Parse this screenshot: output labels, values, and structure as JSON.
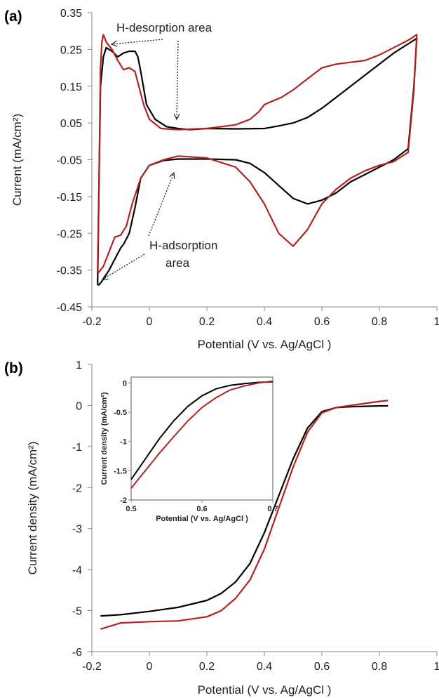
{
  "chart_data": [
    {
      "panel": "(a)",
      "type": "line",
      "xlabel": "Potential (V vs. Ag/AgCl )",
      "ylabel": "Current (mA/cm²)",
      "xlim": [
        -0.2,
        1
      ],
      "ylim": [
        -0.45,
        0.35
      ],
      "xticks": [
        -0.2,
        0,
        0.2,
        0.4,
        0.6,
        0.8,
        1
      ],
      "xtick_labels": [
        "-0.2",
        "0",
        "0.2",
        "0.4",
        "0.6",
        "0.8",
        "1"
      ],
      "yticks": [
        -0.45,
        -0.35,
        -0.25,
        -0.15,
        -0.05,
        0.05,
        0.15,
        0.25,
        0.35
      ],
      "ytick_labels": [
        "-0.45",
        "-0.35",
        "-0.25",
        "-0.15",
        "-0.05",
        "0.05",
        "0.15",
        "0.25",
        "0.35"
      ],
      "annotations": [
        {
          "text": "H-desorption area"
        },
        {
          "text": "H-adsorption"
        },
        {
          "text": "area"
        }
      ],
      "series": [
        {
          "color": "#000000",
          "x": [
            -0.18,
            -0.175,
            -0.17,
            -0.16,
            -0.15,
            -0.13,
            -0.11,
            -0.09,
            -0.07,
            -0.05,
            -0.04,
            -0.03,
            -0.01,
            0.02,
            0.06,
            0.1,
            0.14,
            0.2,
            0.3,
            0.4,
            0.45,
            0.5,
            0.55,
            0.6,
            0.65,
            0.7,
            0.75,
            0.8,
            0.85,
            0.9,
            0.93,
            0.93,
            0.92,
            0.9,
            0.85,
            0.8,
            0.75,
            0.7,
            0.65,
            0.6,
            0.55,
            0.5,
            0.45,
            0.4,
            0.35,
            0.3,
            0.2,
            0.1,
            0.05,
            0.0,
            -0.03,
            -0.05,
            -0.07,
            -0.09,
            -0.1,
            -0.12,
            -0.14,
            -0.16,
            -0.17,
            -0.175,
            -0.18
          ],
          "y": [
            -0.39,
            -0.1,
            0.15,
            0.23,
            0.255,
            0.245,
            0.23,
            0.24,
            0.245,
            0.245,
            0.23,
            0.19,
            0.1,
            0.06,
            0.04,
            0.035,
            0.032,
            0.035,
            0.034,
            0.035,
            0.042,
            0.05,
            0.065,
            0.09,
            0.12,
            0.15,
            0.18,
            0.21,
            0.24,
            0.265,
            0.28,
            0.28,
            0.15,
            -0.02,
            -0.05,
            -0.07,
            -0.09,
            -0.11,
            -0.14,
            -0.16,
            -0.17,
            -0.155,
            -0.12,
            -0.085,
            -0.06,
            -0.05,
            -0.048,
            -0.048,
            -0.052,
            -0.065,
            -0.1,
            -0.18,
            -0.25,
            -0.28,
            -0.29,
            -0.32,
            -0.35,
            -0.375,
            -0.385,
            -0.39,
            -0.39
          ]
        },
        {
          "color": "#b22222",
          "x": [
            -0.18,
            -0.175,
            -0.17,
            -0.165,
            -0.16,
            -0.15,
            -0.13,
            -0.11,
            -0.09,
            -0.07,
            -0.05,
            -0.04,
            -0.02,
            0.0,
            0.04,
            0.1,
            0.2,
            0.3,
            0.35,
            0.38,
            0.4,
            0.43,
            0.46,
            0.5,
            0.55,
            0.6,
            0.65,
            0.7,
            0.75,
            0.8,
            0.85,
            0.9,
            0.93,
            0.93,
            0.92,
            0.9,
            0.85,
            0.8,
            0.75,
            0.7,
            0.65,
            0.6,
            0.55,
            0.5,
            0.45,
            0.4,
            0.35,
            0.3,
            0.2,
            0.1,
            0.05,
            0.0,
            -0.03,
            -0.06,
            -0.08,
            -0.1,
            -0.12,
            -0.14,
            -0.16,
            -0.175,
            -0.18
          ],
          "y": [
            -0.355,
            -0.1,
            0.2,
            0.27,
            0.29,
            0.27,
            0.25,
            0.22,
            0.195,
            0.2,
            0.19,
            0.16,
            0.1,
            0.06,
            0.035,
            0.032,
            0.035,
            0.045,
            0.06,
            0.08,
            0.1,
            0.11,
            0.12,
            0.14,
            0.17,
            0.2,
            0.21,
            0.215,
            0.22,
            0.235,
            0.255,
            0.275,
            0.29,
            0.29,
            0.14,
            -0.03,
            -0.055,
            -0.065,
            -0.08,
            -0.1,
            -0.13,
            -0.17,
            -0.24,
            -0.285,
            -0.25,
            -0.17,
            -0.11,
            -0.07,
            -0.045,
            -0.04,
            -0.05,
            -0.065,
            -0.1,
            -0.17,
            -0.23,
            -0.255,
            -0.26,
            -0.3,
            -0.34,
            -0.355,
            -0.355
          ]
        }
      ]
    },
    {
      "panel": "(b)",
      "type": "line",
      "xlabel": "Potential (V vs. Ag/AgCl )",
      "ylabel": "Current density  (mA/cm²)",
      "xlim": [
        -0.2,
        1
      ],
      "ylim": [
        -6,
        1
      ],
      "xticks": [
        -0.2,
        0,
        0.2,
        0.4,
        0.6,
        0.8,
        1
      ],
      "xtick_labels": [
        "-0.2",
        "0",
        "0.2",
        "0.4",
        "0.6",
        "0.8",
        "1"
      ],
      "yticks": [
        -6,
        -5,
        -4,
        -3,
        -2,
        -1,
        0,
        1
      ],
      "ytick_labels": [
        "-6",
        "-5",
        "-4",
        "-3",
        "-2",
        "-1",
        "0",
        "1"
      ],
      "series": [
        {
          "color": "#000000",
          "x": [
            -0.17,
            -0.1,
            0.0,
            0.1,
            0.2,
            0.25,
            0.3,
            0.35,
            0.4,
            0.45,
            0.5,
            0.55,
            0.6,
            0.65,
            0.7,
            0.75,
            0.8,
            0.83
          ],
          "y": [
            -5.13,
            -5.1,
            -5.02,
            -4.92,
            -4.75,
            -4.58,
            -4.3,
            -3.85,
            -3.1,
            -2.2,
            -1.3,
            -0.55,
            -0.15,
            -0.05,
            -0.03,
            -0.02,
            -0.01,
            -0.01
          ]
        },
        {
          "color": "#b22222",
          "x": [
            -0.17,
            -0.1,
            0.0,
            0.1,
            0.2,
            0.25,
            0.3,
            0.35,
            0.4,
            0.45,
            0.5,
            0.55,
            0.6,
            0.65,
            0.7,
            0.75,
            0.8,
            0.83
          ],
          "y": [
            -5.45,
            -5.3,
            -5.27,
            -5.25,
            -5.15,
            -5.0,
            -4.7,
            -4.25,
            -3.5,
            -2.5,
            -1.5,
            -0.65,
            -0.18,
            -0.05,
            0.0,
            0.05,
            0.1,
            0.12
          ]
        }
      ],
      "inset": {
        "xlabel": "Potential (V vs. Ag/AgCl )",
        "ylabel": "Current density  (mA/cm²)",
        "xlim": [
          0.5,
          0.7
        ],
        "ylim": [
          -2,
          0.1
        ],
        "xticks": [
          0.5,
          0.6,
          0.7
        ],
        "xtick_labels": [
          "0.5",
          "0.6",
          "0.7"
        ],
        "yticks": [
          -2,
          -1.5,
          -1,
          -0.5,
          0
        ],
        "ytick_labels": [
          "-2",
          "-1.5",
          "-1",
          "-0.5",
          "0"
        ],
        "series": [
          {
            "color": "#000000",
            "x": [
              0.5,
              0.52,
              0.54,
              0.56,
              0.58,
              0.6,
              0.62,
              0.64,
              0.66,
              0.68,
              0.7
            ],
            "y": [
              -1.65,
              -1.3,
              -0.95,
              -0.65,
              -0.4,
              -0.22,
              -0.1,
              -0.04,
              -0.01,
              0.01,
              0.02
            ]
          },
          {
            "color": "#b22222",
            "x": [
              0.5,
              0.52,
              0.54,
              0.56,
              0.58,
              0.6,
              0.62,
              0.64,
              0.66,
              0.68,
              0.7
            ],
            "y": [
              -1.8,
              -1.5,
              -1.2,
              -0.92,
              -0.65,
              -0.42,
              -0.25,
              -0.12,
              -0.05,
              0.0,
              0.03
            ]
          }
        ]
      }
    }
  ]
}
